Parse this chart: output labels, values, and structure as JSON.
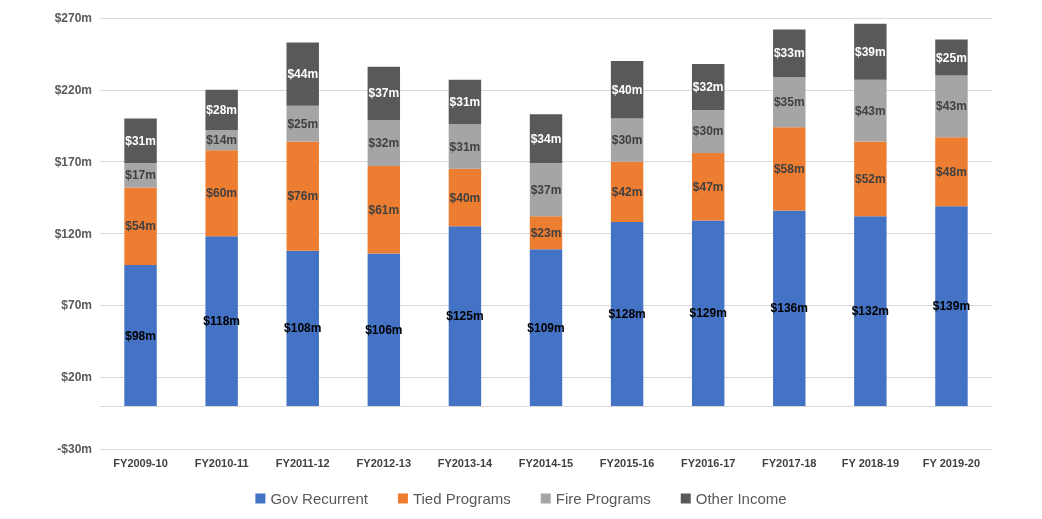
{
  "chart_data": {
    "type": "bar",
    "stacked": true,
    "categories": [
      "FY2009-10",
      "FY2010-11",
      "FY2011-12",
      "FY2012-13",
      "FY2013-14",
      "FY2014-15",
      "FY2015-16",
      "FY2016-17",
      "FY2017-18",
      "FY 2018-19",
      "FY 2019-20"
    ],
    "series": [
      {
        "name": "Gov Recurrent",
        "color": "#4472c4",
        "values": [
          98,
          118,
          108,
          106,
          125,
          109,
          128,
          129,
          136,
          132,
          139
        ],
        "value_labels": [
          "$98m",
          "$118m",
          "$108m",
          "$106m",
          "$125m",
          "$109m",
          "$128m",
          "$129m",
          "$136m",
          "$132m",
          "$139m"
        ]
      },
      {
        "name": "Tied Programs",
        "color": "#ed7d31",
        "values": [
          54,
          60,
          76,
          61,
          40,
          23,
          42,
          47,
          58,
          52,
          48
        ],
        "value_labels": [
          "$54m",
          "$60m",
          "$76m",
          "$61m",
          "$40m",
          "$23m",
          "$42m",
          "$47m",
          "$58m",
          "$52m",
          "$48m"
        ]
      },
      {
        "name": "Fire Programs",
        "color": "#a5a5a5",
        "values": [
          17,
          14,
          25,
          32,
          31,
          37,
          30,
          30,
          35,
          43,
          43
        ],
        "value_labels": [
          "$17m",
          "$14m",
          "$25m",
          "$32m",
          "$31m",
          "$37m",
          "$30m",
          "$30m",
          "$35m",
          "$43m",
          "$43m"
        ]
      },
      {
        "name": "Other Income",
        "color": "#595959",
        "values": [
          31,
          28,
          44,
          37,
          31,
          34,
          40,
          32,
          33,
          39,
          25
        ],
        "value_labels": [
          "$31m",
          "$28m",
          "$44m",
          "$37m",
          "$31m",
          "$34m",
          "$40m",
          "$32m",
          "$33m",
          "$39m",
          "$25m"
        ]
      }
    ],
    "ylim": [
      -30,
      270
    ],
    "yticks": [
      {
        "value": -30,
        "label": "-$30m"
      },
      {
        "value": 20,
        "label": "$20m"
      },
      {
        "value": 70,
        "label": "$70m"
      },
      {
        "value": 120,
        "label": "$120m"
      },
      {
        "value": 170,
        "label": "$170m"
      },
      {
        "value": 220,
        "label": "$220m"
      },
      {
        "value": 270,
        "label": "$270m"
      }
    ],
    "grid": "y",
    "legend": "bottom"
  }
}
